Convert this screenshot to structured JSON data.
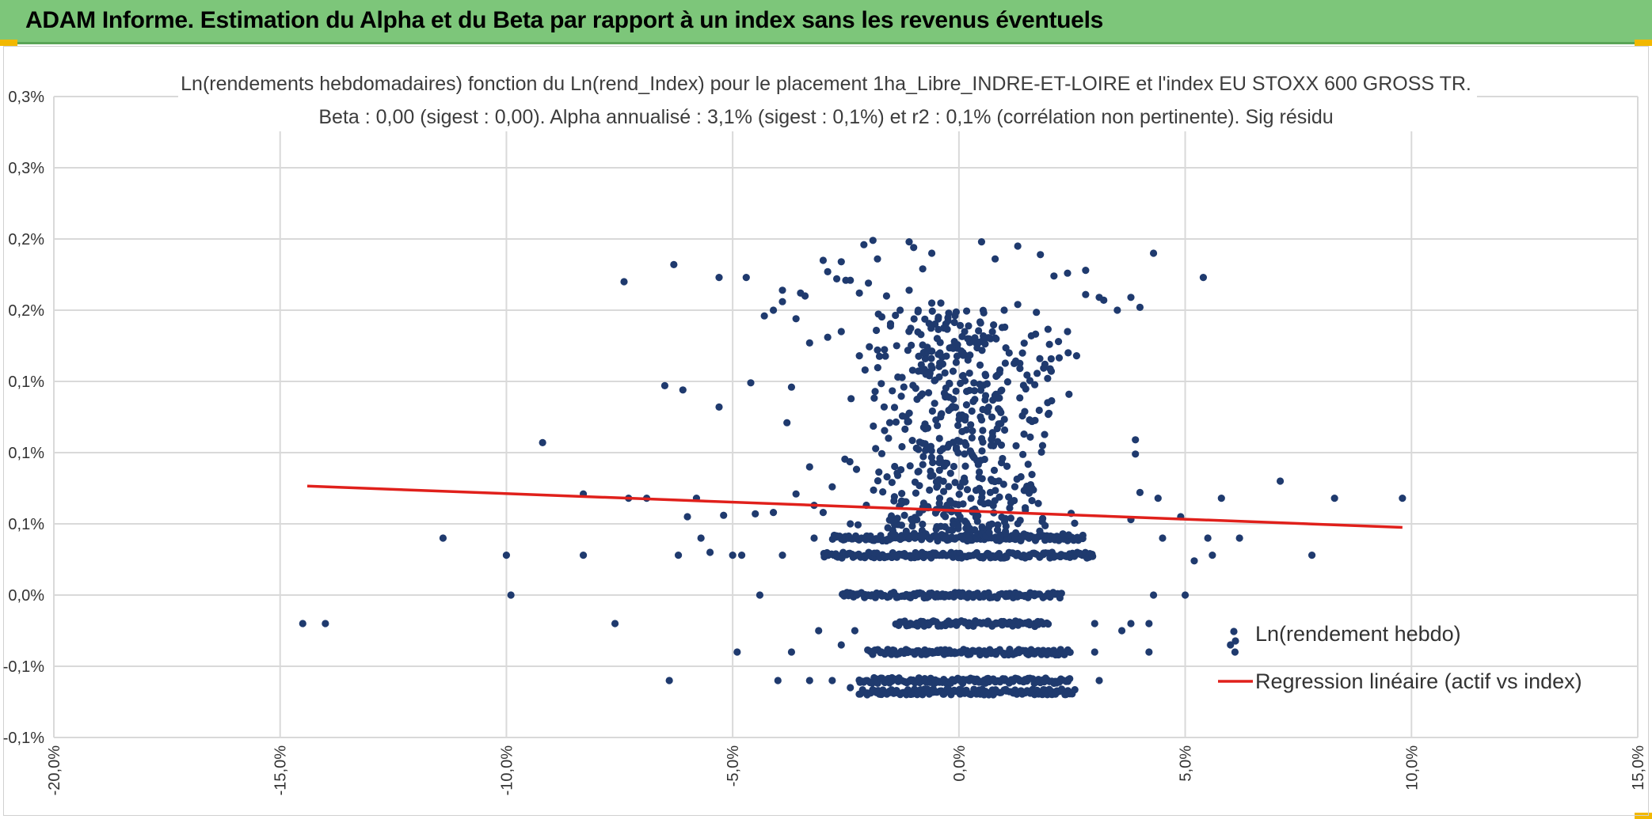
{
  "header": {
    "title": "ADAM Informe. Estimation du Alpha et du Beta par rapport à un index sans les revenus éventuels"
  },
  "chart_data": {
    "type": "scatter",
    "title": "Ln(rendements hebdomadaires) fonction du Ln(rend_Index) pour le placement 1ha_Libre_INDRE-ET-LOIRE et l'index EU STOXX 600 GROSS TR.",
    "subtitle": "Beta : 0,00 (sigest : 0,00). Alpha annualisé : 3,1% (sigest : 0,1%) et r2 : 0,1% (corrélation non pertinente). Sig résidu",
    "xlabel": "",
    "ylabel": "",
    "xlim": [
      -20,
      15
    ],
    "ylim": [
      -0.1,
      0.35
    ],
    "x_ticks": [
      -20,
      -15,
      -10,
      -5,
      0,
      5,
      10,
      15
    ],
    "x_tick_labels": [
      "-20,0%",
      "-15,0%",
      "-10,0%",
      "-5,0%",
      "0,0%",
      "5,0%",
      "10,0%",
      "15,0%"
    ],
    "y_ticks": [
      -0.1,
      -0.05,
      0.0,
      0.05,
      0.1,
      0.15,
      0.2,
      0.25,
      0.3,
      0.35
    ],
    "y_tick_labels": [
      "-0,1%",
      "-0,1%",
      "0,0%",
      "0,1%",
      "0,1%",
      "0,1%",
      "0,2%",
      "0,2%",
      "0,3%",
      "0,3%"
    ],
    "grid": true,
    "legend_position": "bottom-right",
    "colors": {
      "points": "#1f3a6e",
      "regression": "#e0201b"
    },
    "series": [
      {
        "name": "Ln(rendement hebdo)",
        "kind": "scatter",
        "points": [
          [
            -14.5,
            -0.02
          ],
          [
            -14.0,
            -0.02
          ],
          [
            -11.4,
            0.04
          ],
          [
            -10.0,
            0.028
          ],
          [
            -9.9,
            0.0
          ],
          [
            -9.2,
            0.107
          ],
          [
            -8.3,
            0.071
          ],
          [
            -8.3,
            0.028
          ],
          [
            -7.6,
            -0.02
          ],
          [
            -7.4,
            0.22
          ],
          [
            -7.3,
            0.068
          ],
          [
            -6.9,
            0.068
          ],
          [
            -6.5,
            0.147
          ],
          [
            -6.4,
            -0.06
          ],
          [
            -6.3,
            0.232
          ],
          [
            -6.2,
            0.028
          ],
          [
            -6.1,
            0.144
          ],
          [
            -6.0,
            0.055
          ],
          [
            -5.8,
            0.068
          ],
          [
            -5.7,
            0.04
          ],
          [
            -5.5,
            0.03
          ],
          [
            -5.3,
            0.132
          ],
          [
            -5.3,
            0.223
          ],
          [
            -5.2,
            0.056
          ],
          [
            -5.0,
            0.028
          ],
          [
            -4.9,
            -0.04
          ],
          [
            -4.8,
            0.028
          ],
          [
            -4.7,
            0.223
          ],
          [
            -4.6,
            0.149
          ],
          [
            -4.4,
            0.0
          ],
          [
            -4.0,
            -0.06
          ],
          [
            -3.9,
            0.214
          ],
          [
            -3.8,
            0.121
          ],
          [
            -3.7,
            -0.04
          ],
          [
            -3.7,
            0.146
          ],
          [
            -3.5,
            0.212
          ],
          [
            -3.3,
            -0.06
          ],
          [
            -3.0,
            0.235
          ],
          [
            -2.9,
            0.227
          ],
          [
            -2.7,
            0.222
          ],
          [
            -2.6,
            0.234
          ],
          [
            -2.5,
            0.221
          ],
          [
            -2.4,
            0.221
          ],
          [
            -2.2,
            0.212
          ],
          [
            -2.1,
            0.246
          ],
          [
            -1.9,
            0.249
          ],
          [
            -1.8,
            0.236
          ],
          [
            -1.1,
            0.248
          ],
          [
            -1.0,
            0.244
          ],
          [
            -0.8,
            0.229
          ],
          [
            -0.6,
            0.24
          ],
          [
            0.5,
            0.248
          ],
          [
            0.8,
            0.236
          ],
          [
            1.3,
            0.245
          ],
          [
            1.8,
            0.239
          ],
          [
            2.4,
            0.226
          ],
          [
            2.8,
            0.228
          ],
          [
            3.1,
            0.209
          ],
          [
            3.8,
            0.209
          ],
          [
            4.0,
            0.202
          ],
          [
            4.3,
            0.24
          ],
          [
            5.4,
            0.223
          ],
          [
            2.8,
            0.211
          ],
          [
            2.1,
            0.224
          ],
          [
            1.6,
            0.182
          ],
          [
            2.0,
            0.176
          ],
          [
            0.2,
            0.165
          ],
          [
            -0.1,
            0.178
          ],
          [
            -0.6,
            0.205
          ],
          [
            -1.1,
            0.214
          ],
          [
            -1.3,
            0.2
          ],
          [
            -2.0,
            0.219
          ],
          [
            -1.6,
            0.21
          ],
          [
            -0.9,
            0.2
          ],
          [
            -3.3,
            0.177
          ],
          [
            -2.9,
            0.181
          ],
          [
            -3.9,
            0.206
          ],
          [
            -3.6,
            0.194
          ],
          [
            2.4,
            0.185
          ],
          [
            2.2,
            0.178
          ],
          [
            1.3,
            0.204
          ],
          [
            -2.6,
            0.185
          ],
          [
            -2.2,
            0.168
          ],
          [
            -4.3,
            0.196
          ],
          [
            -3.4,
            0.21
          ],
          [
            -4.1,
            0.2
          ],
          [
            -0.4,
            0.205
          ],
          [
            0.7,
            0.18
          ],
          [
            1.0,
            0.2
          ],
          [
            3.2,
            0.207
          ],
          [
            3.5,
            0.2
          ],
          [
            1.9,
            0.162
          ],
          [
            2.6,
            0.168
          ],
          [
            -1.8,
            0.172
          ],
          [
            -0.7,
            0.174
          ],
          [
            5.8,
            0.068
          ],
          [
            6.2,
            0.04
          ],
          [
            7.1,
            0.08
          ],
          [
            7.8,
            0.028
          ],
          [
            8.3,
            0.068
          ],
          [
            9.8,
            0.068
          ],
          [
            4.9,
            0.055
          ],
          [
            5.0,
            0.0
          ],
          [
            5.6,
            0.028
          ],
          [
            4.3,
            0.0
          ],
          [
            4.4,
            0.068
          ],
          [
            4.0,
            0.072
          ],
          [
            3.9,
            0.109
          ],
          [
            3.8,
            0.053
          ],
          [
            3.9,
            0.099
          ],
          [
            4.5,
            0.04
          ],
          [
            4.2,
            -0.02
          ],
          [
            4.2,
            -0.04
          ],
          [
            3.8,
            -0.02
          ],
          [
            3.6,
            -0.025
          ],
          [
            3.0,
            -0.02
          ],
          [
            3.0,
            -0.04
          ],
          [
            3.1,
            -0.06
          ],
          [
            6.0,
            -0.035
          ],
          [
            6.1,
            -0.04
          ],
          [
            5.2,
            0.024
          ],
          [
            5.5,
            0.04
          ],
          [
            -2.8,
            -0.06
          ],
          [
            -2.4,
            -0.065
          ],
          [
            -2.6,
            -0.035
          ],
          [
            -3.1,
            -0.025
          ],
          [
            -2.3,
            -0.025
          ],
          [
            -2.7,
            0.028
          ],
          [
            -3.2,
            0.04
          ],
          [
            -3.0,
            0.058
          ],
          [
            -4.1,
            0.058
          ],
          [
            -4.5,
            0.057
          ],
          [
            -3.9,
            0.028
          ],
          [
            -3.6,
            0.071
          ],
          [
            -3.2,
            0.063
          ],
          [
            -2.4,
            0.05
          ],
          [
            -2.8,
            0.076
          ],
          [
            -3.3,
            0.09
          ]
        ]
      },
      {
        "name": "Regression linéaire (actif vs index)",
        "kind": "line",
        "points": [
          [
            -14.4,
            0.0765
          ],
          [
            9.8,
            0.0475
          ]
        ]
      }
    ],
    "dense_clusters": [
      {
        "x_range": [
          -2.8,
          2.8
        ],
        "y": 0.04
      },
      {
        "x_range": [
          -3.0,
          3.0
        ],
        "y": 0.028
      },
      {
        "x_range": [
          -2.6,
          2.3
        ],
        "y": 0.0
      },
      {
        "x_range": [
          -1.4,
          2.0
        ],
        "y": -0.02
      },
      {
        "x_range": [
          -2.0,
          2.5
        ],
        "y": -0.04
      },
      {
        "x_range": [
          -2.2,
          2.5
        ],
        "y": -0.06
      },
      {
        "x_range": [
          -2.2,
          2.6
        ],
        "y": -0.068
      }
    ],
    "dense_scatter": {
      "x_range": [
        -3.0,
        3.0
      ],
      "y_range": [
        0.04,
        0.2
      ]
    }
  }
}
